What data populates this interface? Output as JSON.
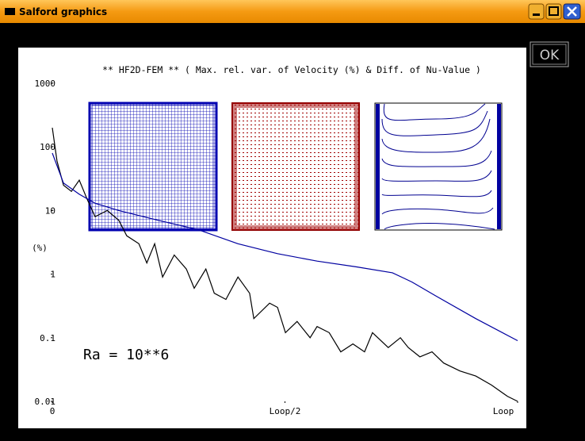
{
  "window": {
    "title": "Salford graphics"
  },
  "ok_button": "OK",
  "chart_data": {
    "type": "line",
    "title": "** HF2D-FEM ** ( Max. rel. var. of Velocity (%) & Diff. of Nu-Value )",
    "ylabel": "(%)",
    "annotation": "Ra = 10**6",
    "log_y": true,
    "xlim": [
      0,
      1
    ],
    "ylim": [
      0.01,
      1000
    ],
    "xticks": [
      0,
      {
        "value": 0.5,
        "label": "Loop/2"
      },
      {
        "value": 1,
        "label": "Loop"
      }
    ],
    "yticks": [
      1000,
      100,
      10,
      1,
      0.1,
      0.01
    ],
    "series": [
      {
        "color": "#000000",
        "x": [
          0,
          0.01,
          0.024,
          0.041,
          0.058,
          0.075,
          0.092,
          0.118,
          0.143,
          0.16,
          0.186,
          0.203,
          0.22,
          0.237,
          0.262,
          0.288,
          0.305,
          0.33,
          0.348,
          0.373,
          0.399,
          0.424,
          0.433,
          0.467,
          0.484,
          0.501,
          0.526,
          0.554,
          0.569,
          0.595,
          0.62,
          0.646,
          0.671,
          0.688,
          0.722,
          0.748,
          0.765,
          0.79,
          0.816,
          0.841,
          0.876,
          0.91,
          0.944,
          0.978,
          1
        ],
        "values": [
          200,
          60,
          25,
          20,
          30,
          15,
          8,
          10,
          7,
          4,
          3,
          1.5,
          3,
          0.9,
          2,
          1.2,
          0.6,
          1.2,
          0.5,
          0.4,
          0.9,
          0.5,
          0.2,
          0.35,
          0.3,
          0.12,
          0.18,
          0.1,
          0.15,
          0.12,
          0.06,
          0.08,
          0.06,
          0.12,
          0.07,
          0.1,
          0.07,
          0.05,
          0.06,
          0.04,
          0.03,
          0.025,
          0.018,
          0.012,
          0.01
        ]
      },
      {
        "color": "#0000a0",
        "x": [
          0,
          0.024,
          0.058,
          0.092,
          0.143,
          0.228,
          0.313,
          0.399,
          0.484,
          0.569,
          0.654,
          0.731,
          0.773,
          0.825,
          0.91,
          1
        ],
        "values": [
          80,
          27,
          18,
          13,
          10,
          7,
          5,
          3,
          2.1,
          1.6,
          1.3,
          1.05,
          0.75,
          0.45,
          0.2,
          0.09
        ]
      }
    ]
  }
}
